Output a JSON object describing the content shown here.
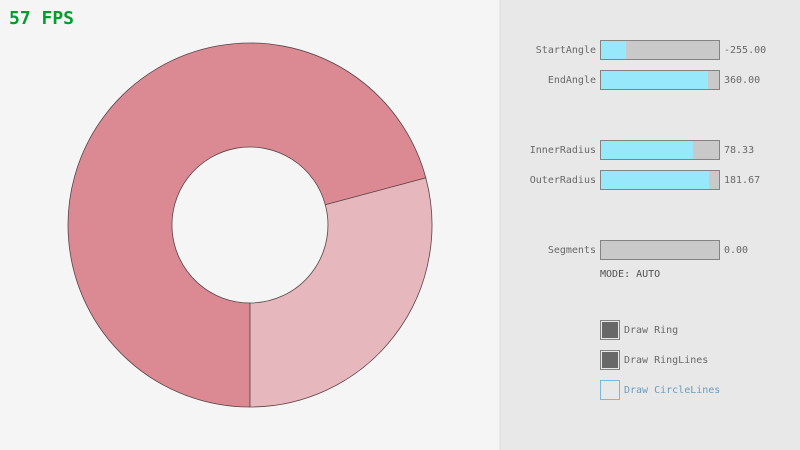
{
  "fps": "57 FPS",
  "sliders": [
    {
      "label": "StartAngle",
      "value": "-255.00"
    },
    {
      "label": "EndAngle",
      "value": "360.00"
    },
    {
      "label": "InnerRadius",
      "value": "78.33"
    },
    {
      "label": "OuterRadius",
      "value": "181.67"
    },
    {
      "label": "Segments",
      "value": "0.00"
    }
  ],
  "mode": "MODE: AUTO",
  "checkboxes": [
    {
      "label": "Draw Ring"
    },
    {
      "label": "Draw RingLines"
    },
    {
      "label": "Draw CircleLines"
    }
  ]
}
